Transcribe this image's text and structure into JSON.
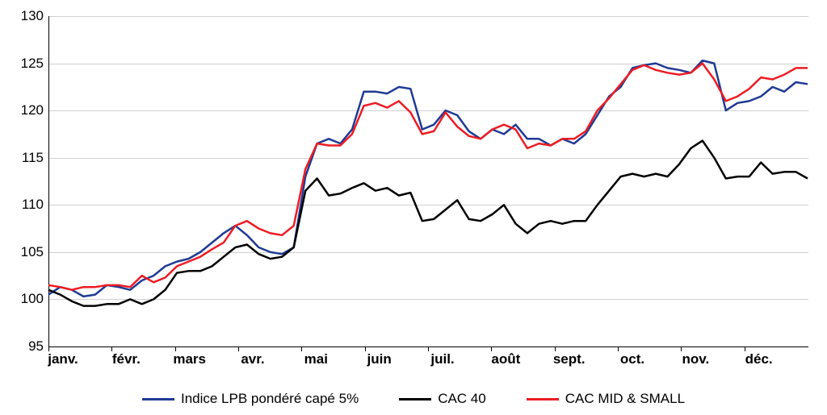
{
  "chart": {
    "type": "line",
    "background_color": "#ffffff",
    "grid_color": "#d0d0d0",
    "axis_color": "#000000",
    "ylim": [
      95,
      130
    ],
    "ytick_step": 5,
    "yticks": [
      95,
      100,
      105,
      110,
      115,
      120,
      125,
      130
    ],
    "xlabels": [
      "janv.",
      "févr.",
      "mars",
      "avr.",
      "mai",
      "juin",
      "juil.",
      "août",
      "sept.",
      "oct.",
      "nov.",
      "déc."
    ],
    "label_fontsize": 17,
    "line_width": 2.5,
    "series": [
      {
        "name": "Indice LPB pondéré capé 5%",
        "color": "#1f3a93",
        "data": [
          100.5,
          101.3,
          101.0,
          100.3,
          100.5,
          101.5,
          101.3,
          101.0,
          102.0,
          102.5,
          103.5,
          104.0,
          104.3,
          105.0,
          106.0,
          107.0,
          107.8,
          106.8,
          105.5,
          105.0,
          104.8,
          105.5,
          113.0,
          116.5,
          117.0,
          116.5,
          118.0,
          122.0,
          122.0,
          121.8,
          122.5,
          122.3,
          118.0,
          118.5,
          120.0,
          119.5,
          117.8,
          117.0,
          118.0,
          117.5,
          118.5,
          117.0,
          117.0,
          116.3,
          117.0,
          116.5,
          117.5,
          119.5,
          121.5,
          122.5,
          124.5,
          124.8,
          125.0,
          124.5,
          124.3,
          124.0,
          125.3,
          125.0,
          120.0,
          120.8,
          121.0,
          121.5,
          122.5,
          122.0,
          123.0,
          122.8
        ]
      },
      {
        "name": "CAC 40",
        "color": "#000000",
        "data": [
          101.0,
          100.5,
          99.8,
          99.3,
          99.3,
          99.5,
          99.5,
          100.0,
          99.5,
          100.0,
          101.0,
          102.8,
          103.0,
          103.0,
          103.5,
          104.5,
          105.5,
          105.8,
          104.8,
          104.3,
          104.5,
          105.5,
          111.5,
          112.8,
          111.0,
          111.2,
          111.8,
          112.3,
          111.5,
          111.8,
          111.0,
          111.3,
          108.3,
          108.5,
          109.5,
          110.5,
          108.5,
          108.3,
          109.0,
          110.0,
          108.0,
          107.0,
          108.0,
          108.3,
          108.0,
          108.3,
          108.3,
          110.0,
          111.5,
          113.0,
          113.3,
          113.0,
          113.3,
          113.0,
          114.3,
          116.0,
          116.8,
          115.0,
          112.8,
          113.0,
          113.0,
          114.5,
          113.3,
          113.5,
          113.5,
          112.8
        ]
      },
      {
        "name": "CAC MID & SMALL",
        "color": "#ed1c24",
        "data": [
          101.5,
          101.3,
          101.0,
          101.3,
          101.3,
          101.5,
          101.5,
          101.3,
          102.5,
          101.8,
          102.3,
          103.5,
          104.0,
          104.5,
          105.3,
          106.0,
          107.8,
          108.3,
          107.5,
          107.0,
          106.8,
          107.8,
          113.8,
          116.5,
          116.3,
          116.3,
          117.5,
          120.5,
          120.8,
          120.3,
          121.0,
          119.8,
          117.5,
          117.8,
          119.8,
          118.3,
          117.3,
          117.0,
          118.0,
          118.5,
          118.0,
          116.0,
          116.5,
          116.3,
          117.0,
          117.0,
          117.8,
          120.0,
          121.3,
          122.8,
          124.3,
          124.8,
          124.3,
          124.0,
          123.8,
          124.0,
          125.0,
          123.3,
          121.0,
          121.5,
          122.3,
          123.5,
          123.3,
          123.8,
          124.5,
          124.5
        ]
      }
    ],
    "legend": {
      "items": [
        {
          "label": "Indice LPB pondéré capé 5%",
          "color": "#1f3a93"
        },
        {
          "label": "CAC 40",
          "color": "#000000"
        },
        {
          "label": "CAC MID & SMALL",
          "color": "#ed1c24"
        }
      ]
    }
  }
}
